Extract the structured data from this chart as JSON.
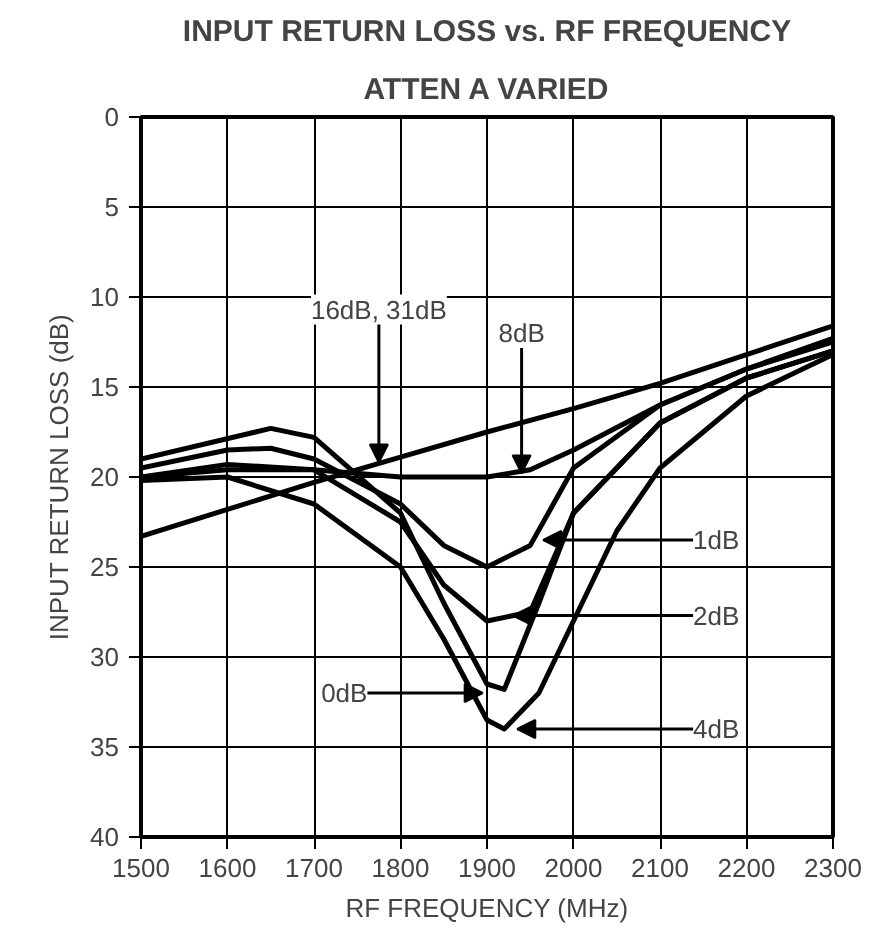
{
  "chart_data": {
    "type": "line",
    "title": "INPUT RETURN LOSS vs. RF FREQUENCY",
    "subtitle": "ATTEN A VARIED",
    "xlabel": "RF FREQUENCY (MHz)",
    "ylabel": "INPUT RETURN LOSS (dB)",
    "xlim": [
      1500,
      2300
    ],
    "xticks": [
      1500,
      1600,
      1700,
      1800,
      1900,
      2000,
      2100,
      2200,
      2300
    ],
    "ylim": [
      40,
      0
    ],
    "yticks": [
      0,
      5,
      10,
      15,
      20,
      25,
      30,
      35,
      40
    ],
    "grid": true,
    "marker": "none",
    "line_style": "solid",
    "series": [
      {
        "color": "#000000",
        "x": [
          1500,
          1600,
          1700,
          1800,
          1900,
          2000,
          2100,
          2200,
          2300
        ],
        "values": [
          23.3,
          21.8,
          20.3,
          18.9,
          17.5,
          16.2,
          14.8,
          13.2,
          11.6
        ]
      },
      {
        "color": "#000000",
        "x": [
          1500,
          1600,
          1700,
          1800,
          1900,
          1950,
          2000,
          2100,
          2200,
          2300
        ],
        "values": [
          20,
          19.6,
          19.6,
          20,
          20,
          19.6,
          18.5,
          16,
          14,
          12.3
        ]
      },
      {
        "color": "#000000",
        "x": [
          1500,
          1600,
          1650,
          1700,
          1800,
          1850,
          1900,
          1950,
          2000,
          2100,
          2200,
          2300
        ],
        "values": [
          19.5,
          18.5,
          18.4,
          19,
          21.5,
          23.8,
          25,
          23.8,
          19.5,
          16,
          14,
          12.5
        ]
      },
      {
        "color": "#000000",
        "x": [
          1500,
          1600,
          1700,
          1800,
          1850,
          1900,
          1950,
          2000,
          2100,
          2200,
          2300
        ],
        "values": [
          20,
          19.3,
          19.6,
          22.5,
          26,
          28,
          27.5,
          22,
          17,
          14.5,
          13
        ]
      },
      {
        "color": "#000000",
        "x": [
          1500,
          1650,
          1700,
          1800,
          1850,
          1900,
          1920,
          1960,
          2000,
          2100,
          2200,
          2300
        ],
        "values": [
          19,
          17.3,
          17.8,
          22,
          27,
          31.5,
          31.8,
          27,
          22,
          17,
          14.5,
          13
        ]
      },
      {
        "color": "#000000",
        "x": [
          1500,
          1600,
          1700,
          1800,
          1850,
          1900,
          1920,
          1960,
          2000,
          2050,
          2100,
          2200,
          2300
        ],
        "values": [
          20.2,
          20,
          21.5,
          25,
          29,
          33.5,
          34,
          32,
          28,
          23,
          19.5,
          15.5,
          13.2
        ]
      }
    ],
    "annotations": [
      {
        "text": "16dB, 31dB",
        "x": 1775,
        "y": 19.2
      },
      {
        "text": "8dB",
        "x": 1940,
        "y": 19.8
      },
      {
        "text": "1dB",
        "x": 1965,
        "y": 23.5
      },
      {
        "text": "2dB",
        "x": 1930,
        "y": 27.7
      },
      {
        "text": "0dB",
        "x": 1895,
        "y": 32
      },
      {
        "text": "4dB",
        "x": 1935,
        "y": 34
      }
    ]
  }
}
